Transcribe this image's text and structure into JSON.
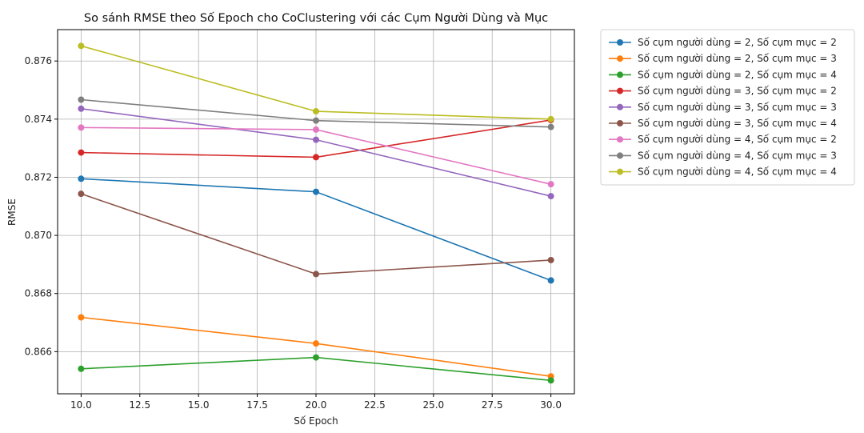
{
  "chart_data": {
    "type": "line",
    "title": "So sánh RMSE theo Số Epoch cho CoClustering với các Cụm Người Dùng và Mục",
    "xlabel": "Số Epoch",
    "ylabel": "RMSE",
    "x": [
      10,
      20,
      30
    ],
    "xlim": [
      9.0,
      31.0
    ],
    "ylim": [
      0.86455,
      0.87708
    ],
    "xticks": [
      10,
      12.5,
      15,
      17.5,
      20,
      22.5,
      25,
      27.5,
      30
    ],
    "xtick_labels": [
      "10.0",
      "12.5",
      "15.0",
      "17.5",
      "20.0",
      "22.5",
      "25.0",
      "27.5",
      "30.0"
    ],
    "yticks": [
      0.866,
      0.868,
      0.87,
      0.872,
      0.874,
      0.876
    ],
    "ytick_labels": [
      "0.866",
      "0.868",
      "0.870",
      "0.872",
      "0.874",
      "0.876"
    ],
    "grid": true,
    "legend_position": "outside-right-top",
    "series": [
      {
        "name": "Số cụm người dùng = 2, Số cụm mục = 2",
        "color": "#1f77b4",
        "values": [
          0.87195,
          0.8715,
          0.86845
        ]
      },
      {
        "name": "Số cụm người dùng = 2, Số cụm mục = 3",
        "color": "#ff7f0e",
        "values": [
          0.86718,
          0.86628,
          0.86515
        ]
      },
      {
        "name": "Số cụm người dùng = 2, Số cụm mục = 4",
        "color": "#2ca02c",
        "values": [
          0.86541,
          0.8658,
          0.86501
        ]
      },
      {
        "name": "Số cụm người dùng = 3, Số cụm mục = 2",
        "color": "#d62728",
        "values": [
          0.87285,
          0.87269,
          0.87397
        ]
      },
      {
        "name": "Số cụm người dùng = 3, Số cụm mục = 3",
        "color": "#9467bd",
        "values": [
          0.87436,
          0.87329,
          0.87135
        ]
      },
      {
        "name": "Số cụm người dùng = 3, Số cụm mục = 4",
        "color": "#8c564b",
        "values": [
          0.87143,
          0.86867,
          0.86915
        ]
      },
      {
        "name": "Số cụm người dùng = 4, Số cụm mục = 2",
        "color": "#e377c2",
        "values": [
          0.87371,
          0.87364,
          0.87176
        ]
      },
      {
        "name": "Số cụm người dùng = 4, Số cụm mục = 3",
        "color": "#7f7f7f",
        "values": [
          0.87467,
          0.87395,
          0.87373
        ]
      },
      {
        "name": "Số cụm người dùng = 4, Số cụm mục = 4",
        "color": "#bcbd22",
        "values": [
          0.87652,
          0.87427,
          0.874
        ]
      }
    ]
  }
}
